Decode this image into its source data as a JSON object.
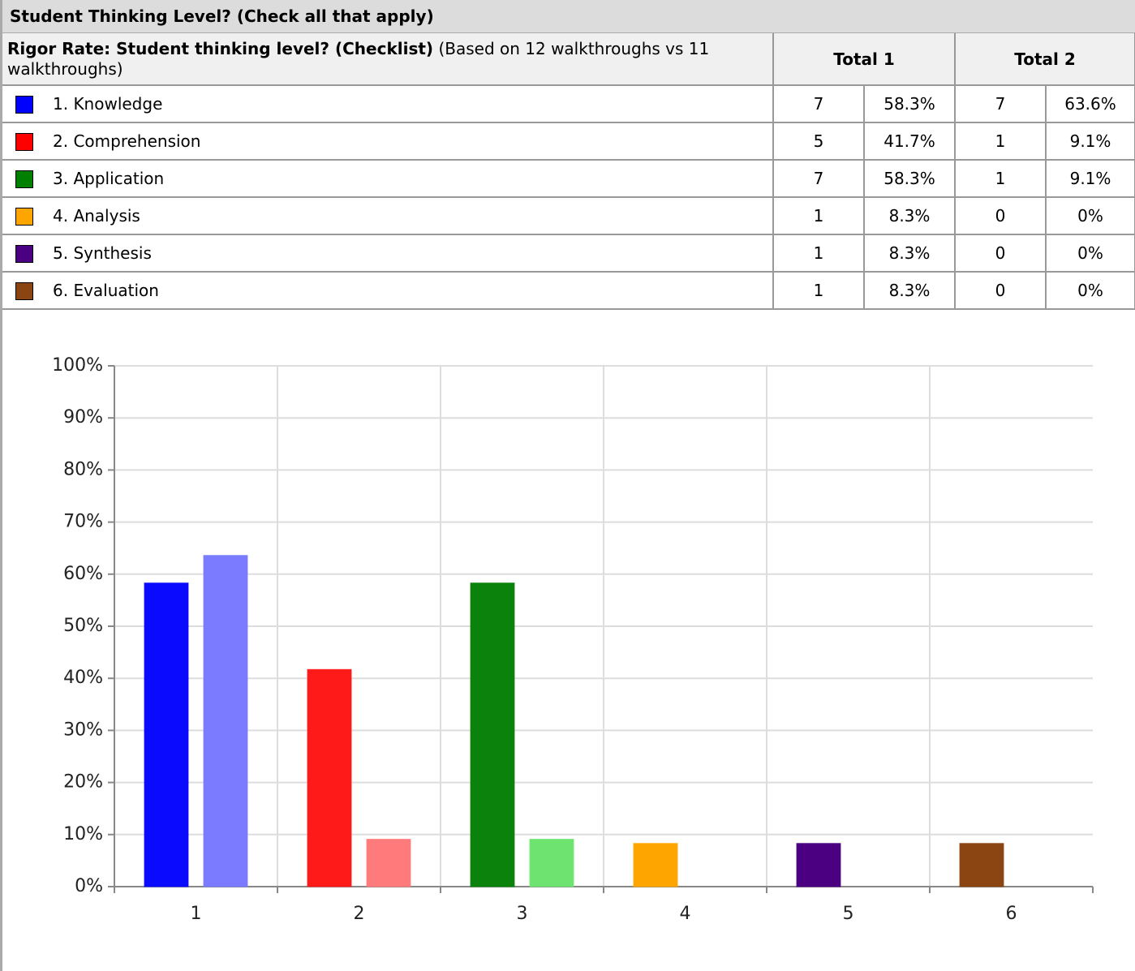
{
  "header": {
    "title": "Student Thinking Level? (Check all that apply)"
  },
  "table": {
    "title_bold": "Rigor Rate: Student thinking level? (Checklist)",
    "title_note": "(Based on 12 walkthroughs vs 11 walkthroughs)",
    "columns": [
      "Total 1",
      "Total 2"
    ],
    "rows": [
      {
        "label": "1. Knowledge",
        "color": "#0000ff",
        "cells": [
          "7",
          "58.3%",
          "7",
          "63.6%"
        ]
      },
      {
        "label": "2. Comprehension",
        "color": "#ff0000",
        "cells": [
          "5",
          "41.7%",
          "1",
          "9.1%"
        ]
      },
      {
        "label": "3. Application",
        "color": "#008000",
        "cells": [
          "7",
          "58.3%",
          "1",
          "9.1%"
        ]
      },
      {
        "label": "4. Analysis",
        "color": "#ffa500",
        "cells": [
          "1",
          "8.3%",
          "0",
          "0%"
        ]
      },
      {
        "label": "5. Synthesis",
        "color": "#4b0082",
        "cells": [
          "1",
          "8.3%",
          "0",
          "0%"
        ]
      },
      {
        "label": "6. Evaluation",
        "color": "#8b4513",
        "cells": [
          "1",
          "8.3%",
          "0",
          "0%"
        ]
      }
    ]
  },
  "chart_data": {
    "type": "bar",
    "categories": [
      "1",
      "2",
      "3",
      "4",
      "5",
      "6"
    ],
    "series": [
      {
        "name": "Total 1",
        "colors": [
          "#0a0aff",
          "#ff1a1a",
          "#0b820b",
          "#ffa500",
          "#4b0082",
          "#8b4513"
        ],
        "values": [
          58.3,
          41.7,
          58.3,
          8.3,
          8.3,
          8.3
        ]
      },
      {
        "name": "Total 2",
        "colors": [
          "#7b7bff",
          "#ff7b7b",
          "#6fe36f",
          "#ffd27b",
          "#a57bc8",
          "#c89a7b"
        ],
        "values": [
          63.6,
          9.1,
          9.1,
          0,
          0,
          0
        ]
      }
    ],
    "ylim": [
      0,
      100
    ],
    "yticks": [
      {
        "value": 0,
        "label": "0%"
      },
      {
        "value": 10,
        "label": "10%"
      },
      {
        "value": 20,
        "label": "20%"
      },
      {
        "value": 30,
        "label": "30%"
      },
      {
        "value": 40,
        "label": "40%"
      },
      {
        "value": 50,
        "label": "50%"
      },
      {
        "value": 60,
        "label": "60%"
      },
      {
        "value": 70,
        "label": "70%"
      },
      {
        "value": 80,
        "label": "80%"
      },
      {
        "value": 90,
        "label": "90%"
      },
      {
        "value": 100,
        "label": "100%"
      }
    ],
    "grid": true
  }
}
